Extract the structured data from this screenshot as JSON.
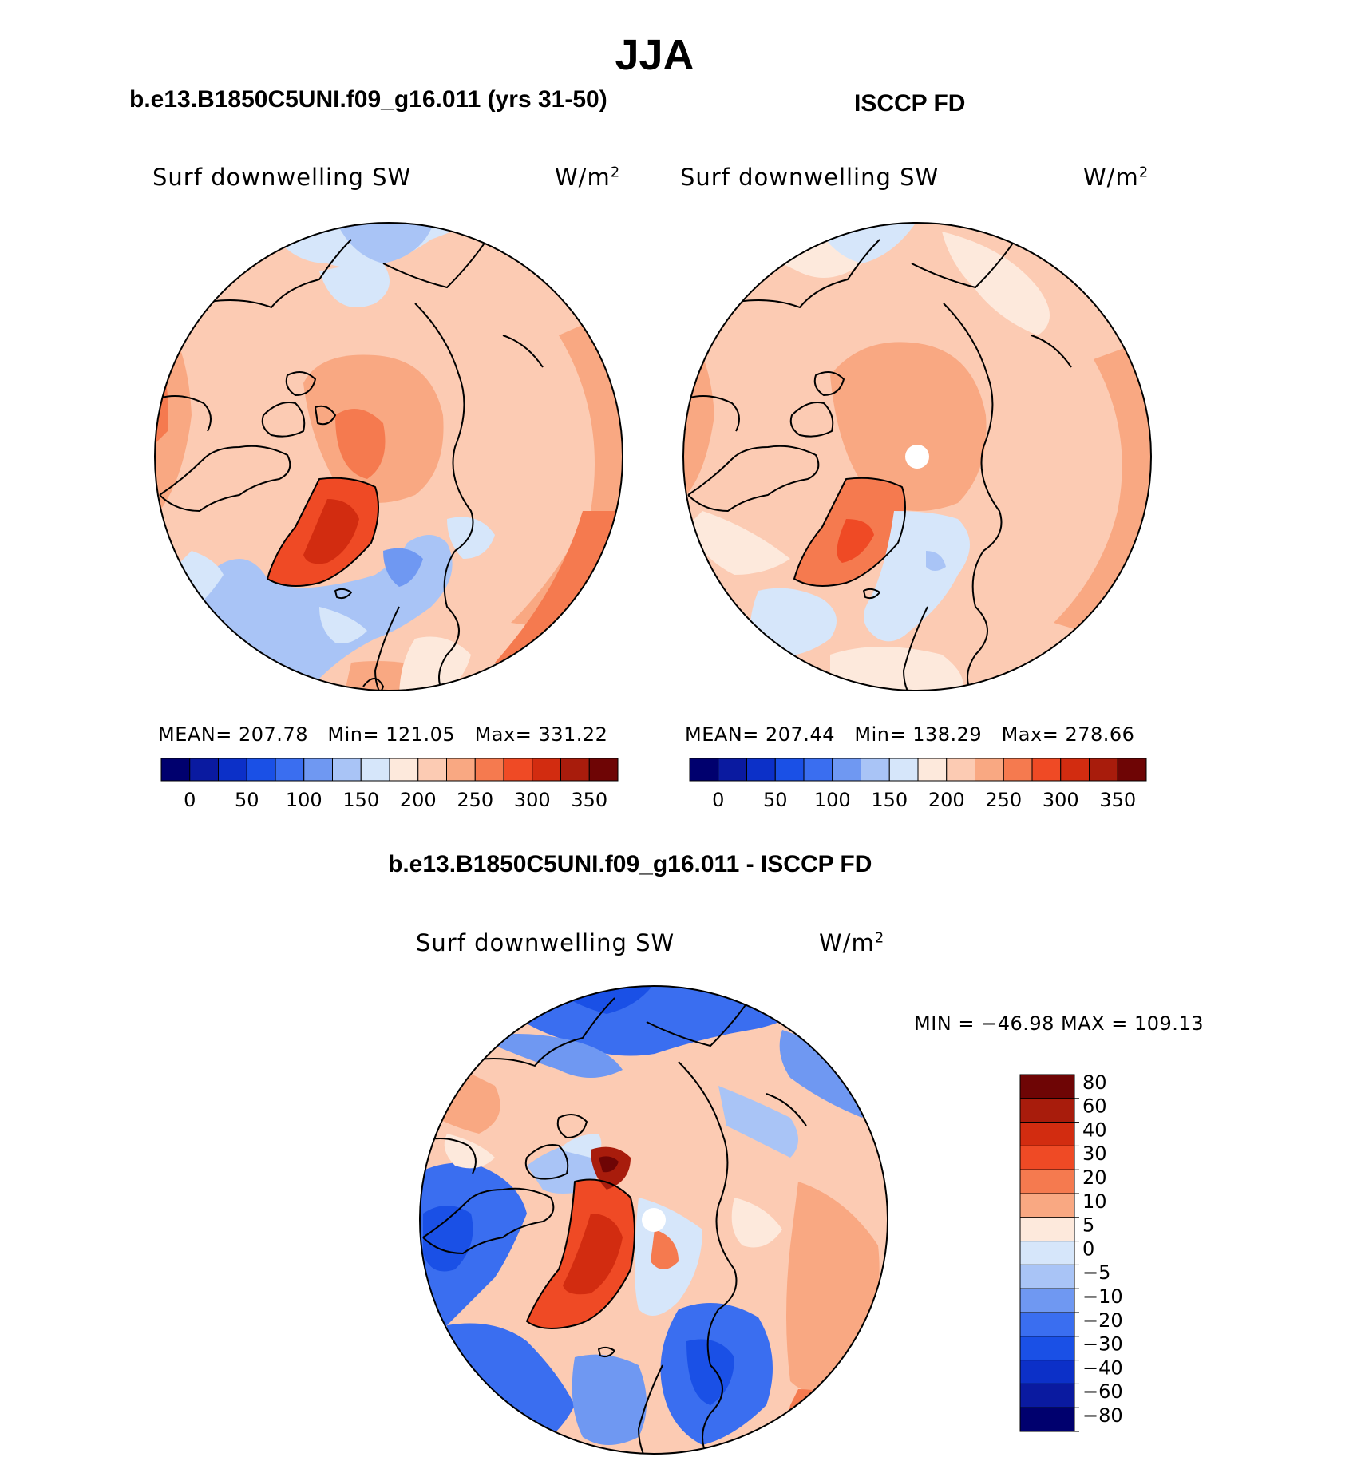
{
  "title": "JJA",
  "panels": {
    "model": {
      "heading": "b.e13.B1850C5UNI.f09_g16.011 (yrs 31-50)",
      "variable": "Surf downwelling SW",
      "units_base": "W/m",
      "units_exp": "2",
      "stats": {
        "mean_label": "MEAN=",
        "mean": "207.78",
        "min_label": "Min=",
        "min": "121.05",
        "max_label": "Max=",
        "max": "331.22"
      }
    },
    "obs": {
      "heading": "ISCCP FD",
      "variable": "Surf downwelling SW",
      "units_base": "W/m",
      "units_exp": "2",
      "stats": {
        "mean_label": "MEAN=",
        "mean": "207.44",
        "min_label": "Min=",
        "min": "138.29",
        "max_label": "Max=",
        "max": "278.66"
      }
    },
    "diff": {
      "heading": "b.e13.B1850C5UNI.f09_g16.011 - ISCCP FD",
      "variable": "Surf downwelling SW",
      "units_base": "W/m",
      "units_exp": "2",
      "minmax": "MIN = −46.98 MAX = 109.13"
    }
  },
  "colorbars": {
    "absolute": {
      "colors": [
        "#00006e",
        "#0a1aa0",
        "#0c30c8",
        "#1a50e6",
        "#3a6ef0",
        "#6f98f2",
        "#a9c4f6",
        "#d6e6fa",
        "#fde9dc",
        "#fccbb3",
        "#f9a882",
        "#f57a4f",
        "#ef4a25",
        "#d22c10",
        "#a81c0c",
        "#6e0505"
      ],
      "tick_labels": [
        "0",
        "50",
        "100",
        "150",
        "200",
        "250",
        "300",
        "350"
      ]
    },
    "difference": {
      "colors": [
        "#6e0505",
        "#a81c0c",
        "#d22c10",
        "#ef4a25",
        "#f57a4f",
        "#f9a882",
        "#fde9dc",
        "#d6e6fa",
        "#a9c4f6",
        "#6f98f2",
        "#3a6ef0",
        "#1a50e6",
        "#0c30c8",
        "#0a1aa0",
        "#00006e"
      ],
      "tick_labels": [
        "80",
        "60",
        "40",
        "30",
        "20",
        "10",
        "5",
        "0",
        "−5",
        "−10",
        "−20",
        "−30",
        "−40",
        "−60",
        "−80"
      ]
    }
  }
}
